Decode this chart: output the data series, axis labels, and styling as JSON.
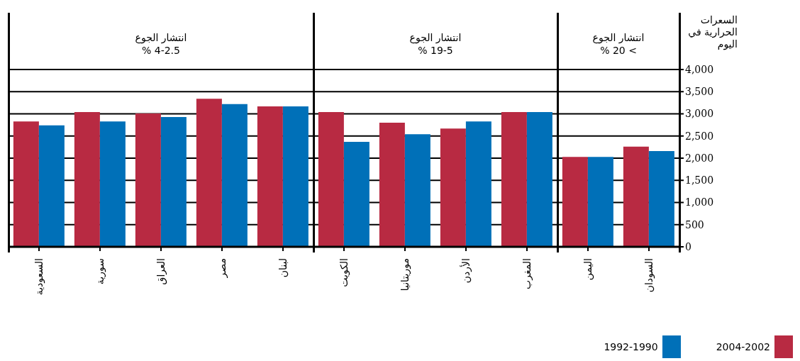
{
  "chart_data": {
    "type": "bar",
    "ylabel": "السعرات الحرارية في اليوم",
    "annotations": [
      "انتشار الجوع\n% 4-2.5",
      "انتشار الجوع\n% 19-5",
      "انتشار الجوع\n% 20 <"
    ],
    "categories": [
      "السعودية",
      "سورية",
      "العراق",
      "مصر",
      "لبنان",
      "الكويت",
      "موريتانيا",
      "الأردن",
      "المغرب",
      "اليمن",
      "السودان"
    ],
    "series": [
      {
        "name": "2004-2002",
        "color": "#b82a42",
        "values": [
          2830,
          3040,
          3010,
          3340,
          3170,
          3040,
          2800,
          2670,
          3040,
          2030,
          2260
        ]
      },
      {
        "name": "1992-1990",
        "color": "#0070b8",
        "values": [
          2740,
          2830,
          2930,
          3220,
          3170,
          2370,
          2540,
          2830,
          3040,
          2030,
          2160
        ]
      }
    ],
    "ylim": [
      0,
      4000
    ],
    "yticks": [
      {
        "value": 0,
        "label": "0"
      },
      {
        "value": 500,
        "label": "500"
      },
      {
        "value": 1000,
        "label": "1,000"
      },
      {
        "value": 1500,
        "label": "1,500"
      },
      {
        "value": 2000,
        "label": "2,000"
      },
      {
        "value": 2500,
        "label": "2,500"
      },
      {
        "value": 3000,
        "label": "3,000"
      },
      {
        "value": 3500,
        "label": "3,500"
      },
      {
        "value": 4000,
        "label": "4,000"
      }
    ],
    "grid": "y",
    "legend": "bottom right"
  }
}
